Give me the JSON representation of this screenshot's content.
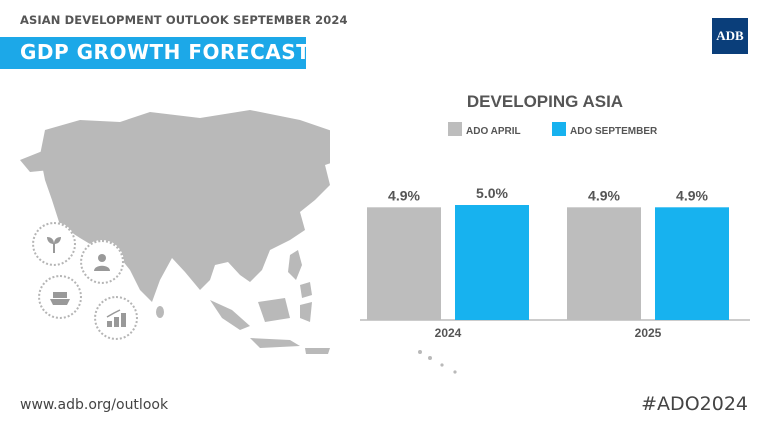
{
  "header": {
    "subtitle": "ASIAN DEVELOPMENT OUTLOOK SEPTEMBER 2024",
    "title": "GDP GROWTH FORECAST",
    "logo": "ADB"
  },
  "footer": {
    "url": "www.adb.org/outlook",
    "hashtag": "#ADO2024"
  },
  "icons": [
    "plant-icon",
    "person-icon",
    "cargo-ship-icon",
    "growth-coins-icon"
  ],
  "colors": {
    "accent": "#1ca8e8",
    "ado_april": "#bdbdbd",
    "ado_september": "#17b2ef",
    "map": "#b9b9b9",
    "logo_bg": "#0a3e7a"
  },
  "chart_data": {
    "type": "bar",
    "title": "DEVELOPING ASIA",
    "categories": [
      "2024",
      "2025"
    ],
    "series": [
      {
        "name": "ADO APRIL",
        "values": [
          4.9,
          4.9
        ],
        "labels": [
          "4.9%",
          "4.9%"
        ]
      },
      {
        "name": "ADO SEPTEMBER",
        "values": [
          5.0,
          4.9
        ],
        "labels": [
          "5.0%",
          "4.9%"
        ]
      }
    ],
    "legend_position": "top",
    "grid": false
  }
}
